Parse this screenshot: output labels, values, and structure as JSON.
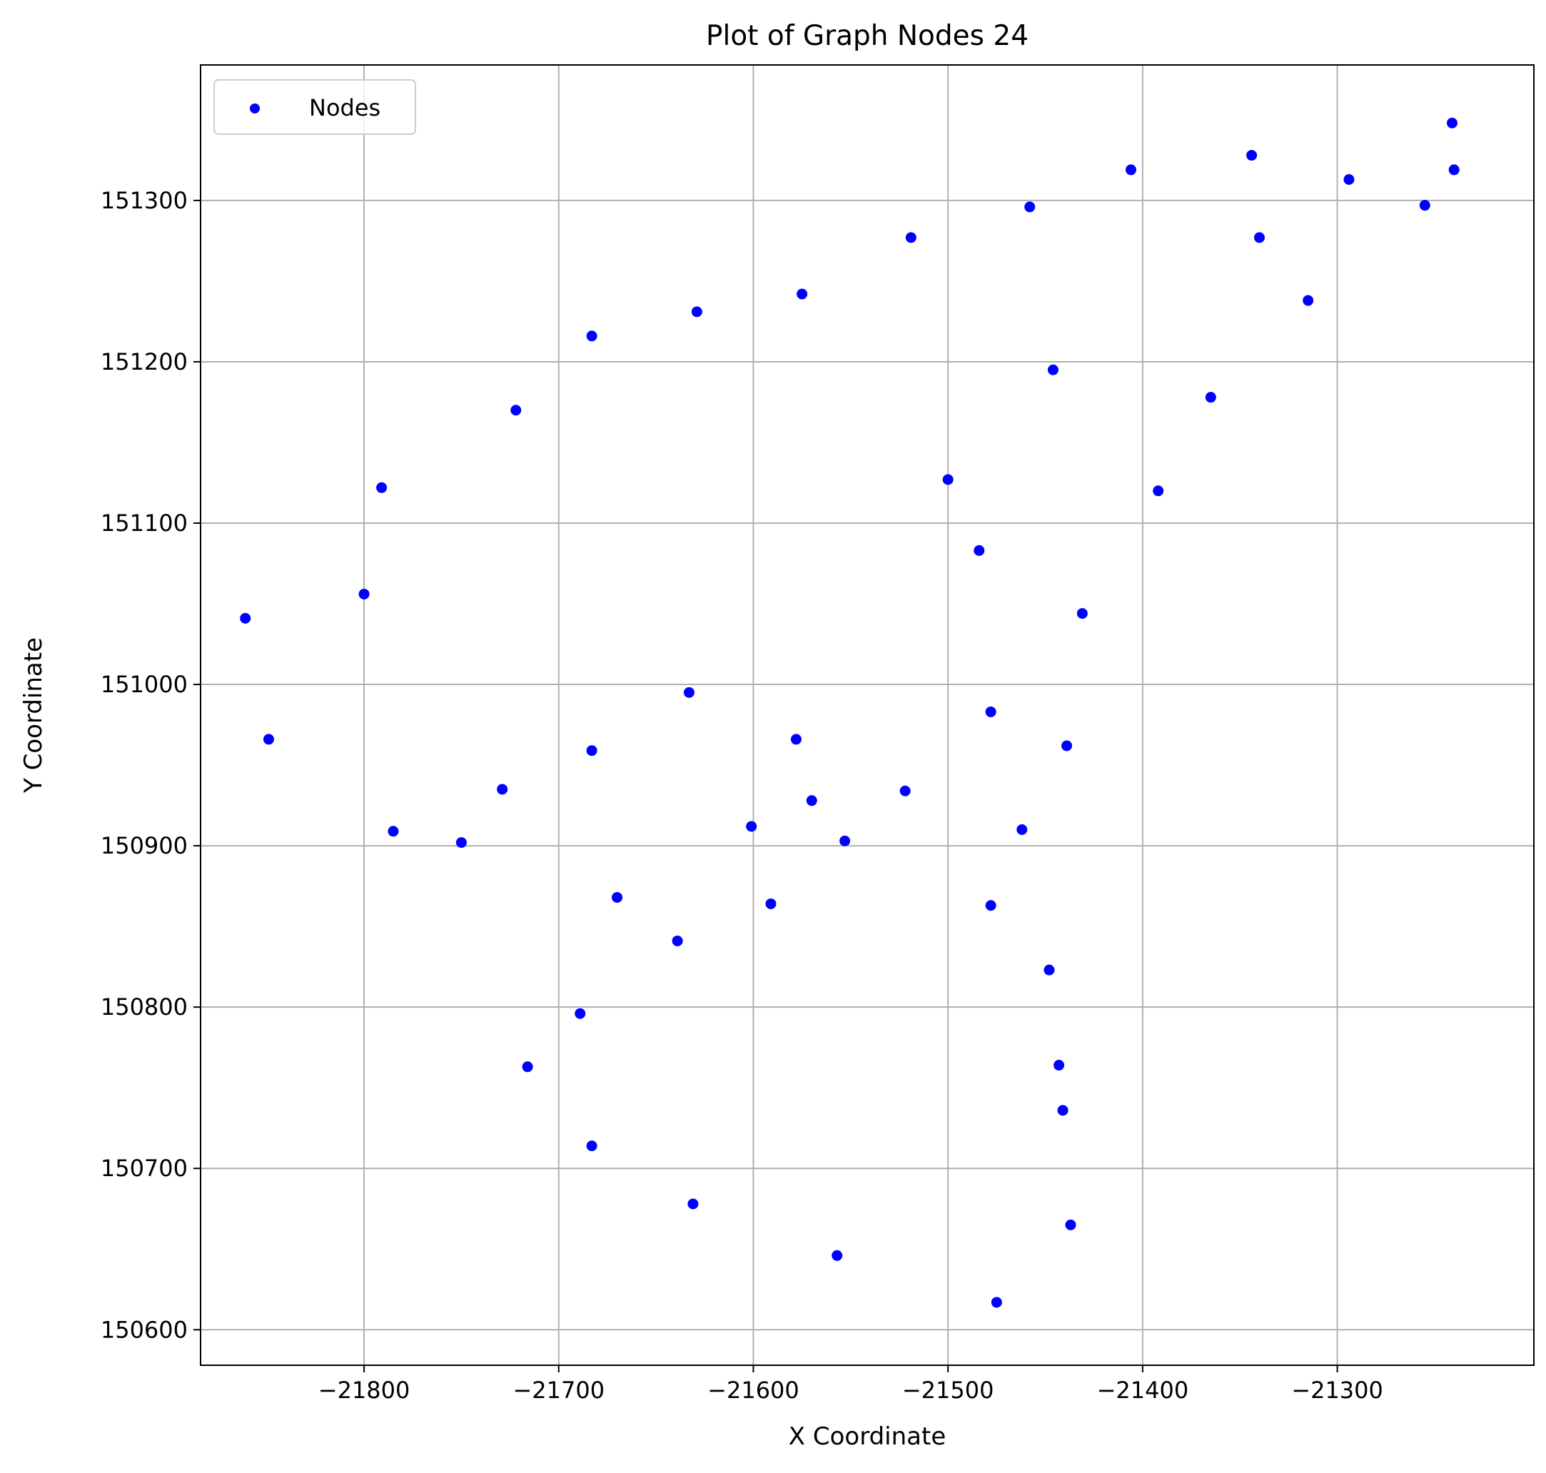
{
  "chart_data": {
    "type": "scatter",
    "title": "Plot of Graph Nodes 24",
    "xlabel": "X Coordinate",
    "ylabel": "Y Coordinate",
    "xlim": [
      -21884,
      -21199
    ],
    "ylim": [
      150578,
      151384
    ],
    "xticks": [
      -21800,
      -21700,
      -21600,
      -21500,
      -21400,
      -21300
    ],
    "xtick_labels": [
      "−21800",
      "−21700",
      "−21600",
      "−21500",
      "−21400",
      "−21300"
    ],
    "yticks": [
      150600,
      150700,
      150800,
      150900,
      151000,
      151100,
      151200,
      151300
    ],
    "ytick_labels": [
      "150600",
      "150700",
      "150800",
      "150900",
      "151000",
      "151100",
      "151200",
      "151300"
    ],
    "grid": true,
    "legend_position": "top-left",
    "series": [
      {
        "name": "Nodes",
        "color": "#0000ff",
        "points": [
          [
            -21241,
            151348
          ],
          [
            -21240,
            151319
          ],
          [
            -21344,
            151328
          ],
          [
            -21406,
            151319
          ],
          [
            -21294,
            151313
          ],
          [
            -21255,
            151297
          ],
          [
            -21458,
            151296
          ],
          [
            -21340,
            151277
          ],
          [
            -21519,
            151277
          ],
          [
            -21315,
            151238
          ],
          [
            -21575,
            151242
          ],
          [
            -21629,
            151231
          ],
          [
            -21683,
            151216
          ],
          [
            -21446,
            151195
          ],
          [
            -21365,
            151178
          ],
          [
            -21722,
            151170
          ],
          [
            -21500,
            151127
          ],
          [
            -21392,
            151120
          ],
          [
            -21791,
            151122
          ],
          [
            -21484,
            151083
          ],
          [
            -21861,
            151041
          ],
          [
            -21800,
            151056
          ],
          [
            -21431,
            151044
          ],
          [
            -21633,
            150995
          ],
          [
            -21478,
            150983
          ],
          [
            -21849,
            150966
          ],
          [
            -21578,
            150966
          ],
          [
            -21439,
            150962
          ],
          [
            -21683,
            150959
          ],
          [
            -21729,
            150935
          ],
          [
            -21522,
            150934
          ],
          [
            -21570,
            150928
          ],
          [
            -21601,
            150912
          ],
          [
            -21785,
            150909
          ],
          [
            -21462,
            150910
          ],
          [
            -21750,
            150902
          ],
          [
            -21553,
            150903
          ],
          [
            -21670,
            150868
          ],
          [
            -21591,
            150864
          ],
          [
            -21478,
            150863
          ],
          [
            -21639,
            150841
          ],
          [
            -21448,
            150823
          ],
          [
            -21689,
            150796
          ],
          [
            -21716,
            150763
          ],
          [
            -21443,
            150764
          ],
          [
            -21441,
            150736
          ],
          [
            -21683,
            150714
          ],
          [
            -21631,
            150678
          ],
          [
            -21437,
            150665
          ],
          [
            -21557,
            150646
          ],
          [
            -21475,
            150617
          ]
        ]
      }
    ]
  }
}
